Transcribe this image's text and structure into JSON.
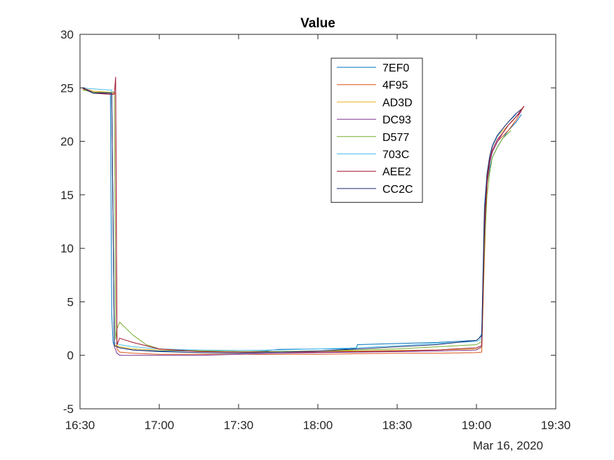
{
  "chart_data": {
    "type": "line",
    "title": "Value",
    "xlabel": "",
    "ylabel": "",
    "date_label": "Mar 16, 2020",
    "x_unit": "time of day (HH:MM), Mar 16, 2020",
    "xlim": [
      "16:30",
      "19:30"
    ],
    "ylim": [
      -5,
      30
    ],
    "x_ticks": [
      "16:30",
      "17:00",
      "17:30",
      "18:00",
      "18:30",
      "19:00",
      "19:30"
    ],
    "y_ticks": [
      -5,
      0,
      5,
      10,
      15,
      20,
      25,
      30
    ],
    "grid": false,
    "legend_position": "top-right",
    "series": [
      {
        "name": "7EF0",
        "color": "#0072BD",
        "x": [
          "16:31",
          "16:34",
          "16:38",
          "16:41:30",
          "16:42",
          "16:42:30",
          "16:43",
          "16:45",
          "16:50",
          "17:00",
          "17:10",
          "17:20",
          "17:30",
          "17:30:30",
          "17:40",
          "17:43",
          "17:45",
          "18:00",
          "18:10",
          "18:14:30",
          "18:15",
          "18:30",
          "18:45",
          "19:00",
          "19:01",
          "19:02",
          "19:03",
          "19:04",
          "19:05",
          "19:06",
          "19:08",
          "19:10",
          "19:12",
          "19:15",
          "19:17"
        ],
        "y": [
          25.0,
          24.6,
          24.5,
          24.5,
          4.0,
          1.2,
          0.9,
          0.7,
          0.5,
          0.4,
          0.4,
          0.4,
          0.35,
          0.3,
          0.4,
          0.5,
          0.55,
          0.6,
          0.6,
          0.65,
          1.0,
          1.1,
          1.2,
          1.4,
          1.6,
          2.0,
          12.0,
          16.0,
          17.5,
          18.5,
          19.5,
          20.3,
          21.0,
          21.8,
          22.5
        ]
      },
      {
        "name": "4F95",
        "color": "#D95319",
        "x": [
          "16:31",
          "16:35",
          "16:41",
          "16:43:30",
          "16:44",
          "16:45",
          "16:50",
          "17:00",
          "17:15",
          "17:30",
          "17:45",
          "18:00",
          "18:15",
          "18:30",
          "18:45",
          "19:00",
          "19:02",
          "19:03",
          "19:04",
          "19:05",
          "19:06",
          "19:08",
          "19:10",
          "19:12",
          "19:15",
          "19:18"
        ],
        "y": [
          24.9,
          24.6,
          24.5,
          24.5,
          0.6,
          0.3,
          0.2,
          0.1,
          0.1,
          0.1,
          0.1,
          0.1,
          0.15,
          0.2,
          0.2,
          0.25,
          0.3,
          9.0,
          16.0,
          18.0,
          19.0,
          20.0,
          20.5,
          21.0,
          22.0,
          23.3
        ]
      },
      {
        "name": "AD3D",
        "color": "#EDB120",
        "x": [
          "16:31",
          "16:35",
          "16:41",
          "16:42",
          "16:43",
          "16:45",
          "16:50",
          "17:00",
          "17:15",
          "17:30",
          "17:45",
          "18:00",
          "18:15",
          "18:30",
          "18:45",
          "19:00",
          "19:02",
          "19:03",
          "19:04",
          "19:05",
          "19:06",
          "19:08",
          "19:10",
          "19:12",
          "19:14"
        ],
        "y": [
          25.0,
          24.7,
          24.6,
          24.5,
          1.0,
          0.8,
          0.6,
          0.5,
          0.4,
          0.35,
          0.35,
          0.4,
          0.4,
          0.45,
          0.5,
          0.6,
          0.7,
          13.0,
          17.0,
          18.5,
          19.5,
          20.5,
          21.0,
          21.5,
          22.0
        ]
      },
      {
        "name": "DC93",
        "color": "#7E2F8E",
        "x": [
          "16:31",
          "16:35",
          "16:41",
          "16:42",
          "16:43",
          "16:44",
          "16:45",
          "16:50",
          "17:00",
          "17:15",
          "17:30",
          "17:45",
          "18:00",
          "18:15",
          "18:30",
          "18:45",
          "19:00",
          "19:02",
          "19:03",
          "19:04",
          "19:05",
          "19:06",
          "19:08",
          "19:10",
          "19:12",
          "19:15",
          "19:17"
        ],
        "y": [
          25.0,
          24.6,
          24.5,
          24.5,
          0.8,
          0.2,
          0.0,
          0.0,
          0.0,
          0.0,
          0.1,
          0.2,
          0.25,
          0.3,
          0.35,
          0.4,
          0.5,
          0.8,
          11.0,
          16.5,
          18.0,
          19.0,
          20.0,
          20.8,
          21.5,
          22.3,
          22.8
        ]
      },
      {
        "name": "D577",
        "color": "#77AC30",
        "x": [
          "16:31",
          "16:35",
          "16:41",
          "16:43",
          "16:43:30",
          "16:44",
          "16:45",
          "16:50",
          "16:55",
          "17:00",
          "17:10",
          "17:20",
          "17:30",
          "17:45",
          "18:00",
          "18:15",
          "18:30",
          "18:45",
          "19:00",
          "19:02",
          "19:03",
          "19:04",
          "19:05",
          "19:06",
          "19:08",
          "19:10",
          "19:13"
        ],
        "y": [
          24.8,
          24.6,
          24.6,
          24.6,
          1.5,
          2.5,
          3.1,
          1.9,
          1.0,
          0.6,
          0.45,
          0.4,
          0.35,
          0.35,
          0.4,
          0.5,
          0.6,
          0.8,
          1.0,
          1.3,
          10.0,
          15.0,
          17.0,
          18.5,
          19.5,
          20.3,
          21.0
        ]
      },
      {
        "name": "703C",
        "color": "#4DBEEE",
        "x": [
          "16:31",
          "16:35",
          "16:41",
          "16:42",
          "16:43",
          "16:45",
          "16:50",
          "17:00",
          "17:15",
          "17:30",
          "17:45",
          "18:00",
          "18:15",
          "18:30",
          "18:45",
          "19:00",
          "19:01",
          "19:02",
          "19:03",
          "19:04",
          "19:05",
          "19:06",
          "19:08",
          "19:10",
          "19:12",
          "19:15"
        ],
        "y": [
          25.0,
          24.9,
          24.8,
          24.8,
          1.2,
          1.0,
          0.8,
          0.6,
          0.5,
          0.45,
          0.5,
          0.6,
          0.7,
          0.9,
          1.1,
          1.3,
          1.4,
          1.6,
          14.0,
          17.0,
          18.5,
          19.5,
          20.5,
          21.2,
          21.8,
          22.5
        ]
      },
      {
        "name": "AEE2",
        "color": "#A2142F",
        "x": [
          "16:31",
          "16:35",
          "16:41",
          "16:43",
          "16:43:30",
          "16:44",
          "16:44:30",
          "16:45",
          "16:50",
          "17:00",
          "17:15",
          "17:30",
          "17:45",
          "18:00",
          "18:15",
          "18:30",
          "18:45",
          "19:00",
          "19:02",
          "19:03",
          "19:04",
          "19:05",
          "19:06",
          "19:08",
          "19:10",
          "19:12",
          "19:15",
          "19:18"
        ],
        "y": [
          25.0,
          24.5,
          24.4,
          24.4,
          26.0,
          1.0,
          1.3,
          1.6,
          1.2,
          0.6,
          0.35,
          0.3,
          0.3,
          0.3,
          0.35,
          0.4,
          0.5,
          0.7,
          0.9,
          12.0,
          16.5,
          18.2,
          19.2,
          20.2,
          20.8,
          21.5,
          22.3,
          23.3
        ]
      },
      {
        "name": "CC2C",
        "color": "#1F2A6B",
        "x": [
          "16:31",
          "16:35",
          "16:41",
          "16:42",
          "16:43",
          "16:45",
          "16:50",
          "17:00",
          "17:15",
          "17:30",
          "17:45",
          "18:00",
          "18:15",
          "18:30",
          "18:45",
          "19:00",
          "19:01",
          "19:02",
          "19:03",
          "19:04",
          "19:05",
          "19:06",
          "19:08",
          "19:10",
          "19:12",
          "19:15",
          "19:17"
        ],
        "y": [
          25.0,
          24.5,
          24.5,
          24.5,
          0.9,
          0.7,
          0.5,
          0.35,
          0.25,
          0.2,
          0.3,
          0.4,
          0.6,
          0.8,
          1.0,
          1.4,
          1.6,
          1.8,
          13.5,
          17.0,
          18.6,
          19.6,
          20.6,
          21.2,
          21.8,
          22.6,
          23.0
        ]
      }
    ]
  }
}
